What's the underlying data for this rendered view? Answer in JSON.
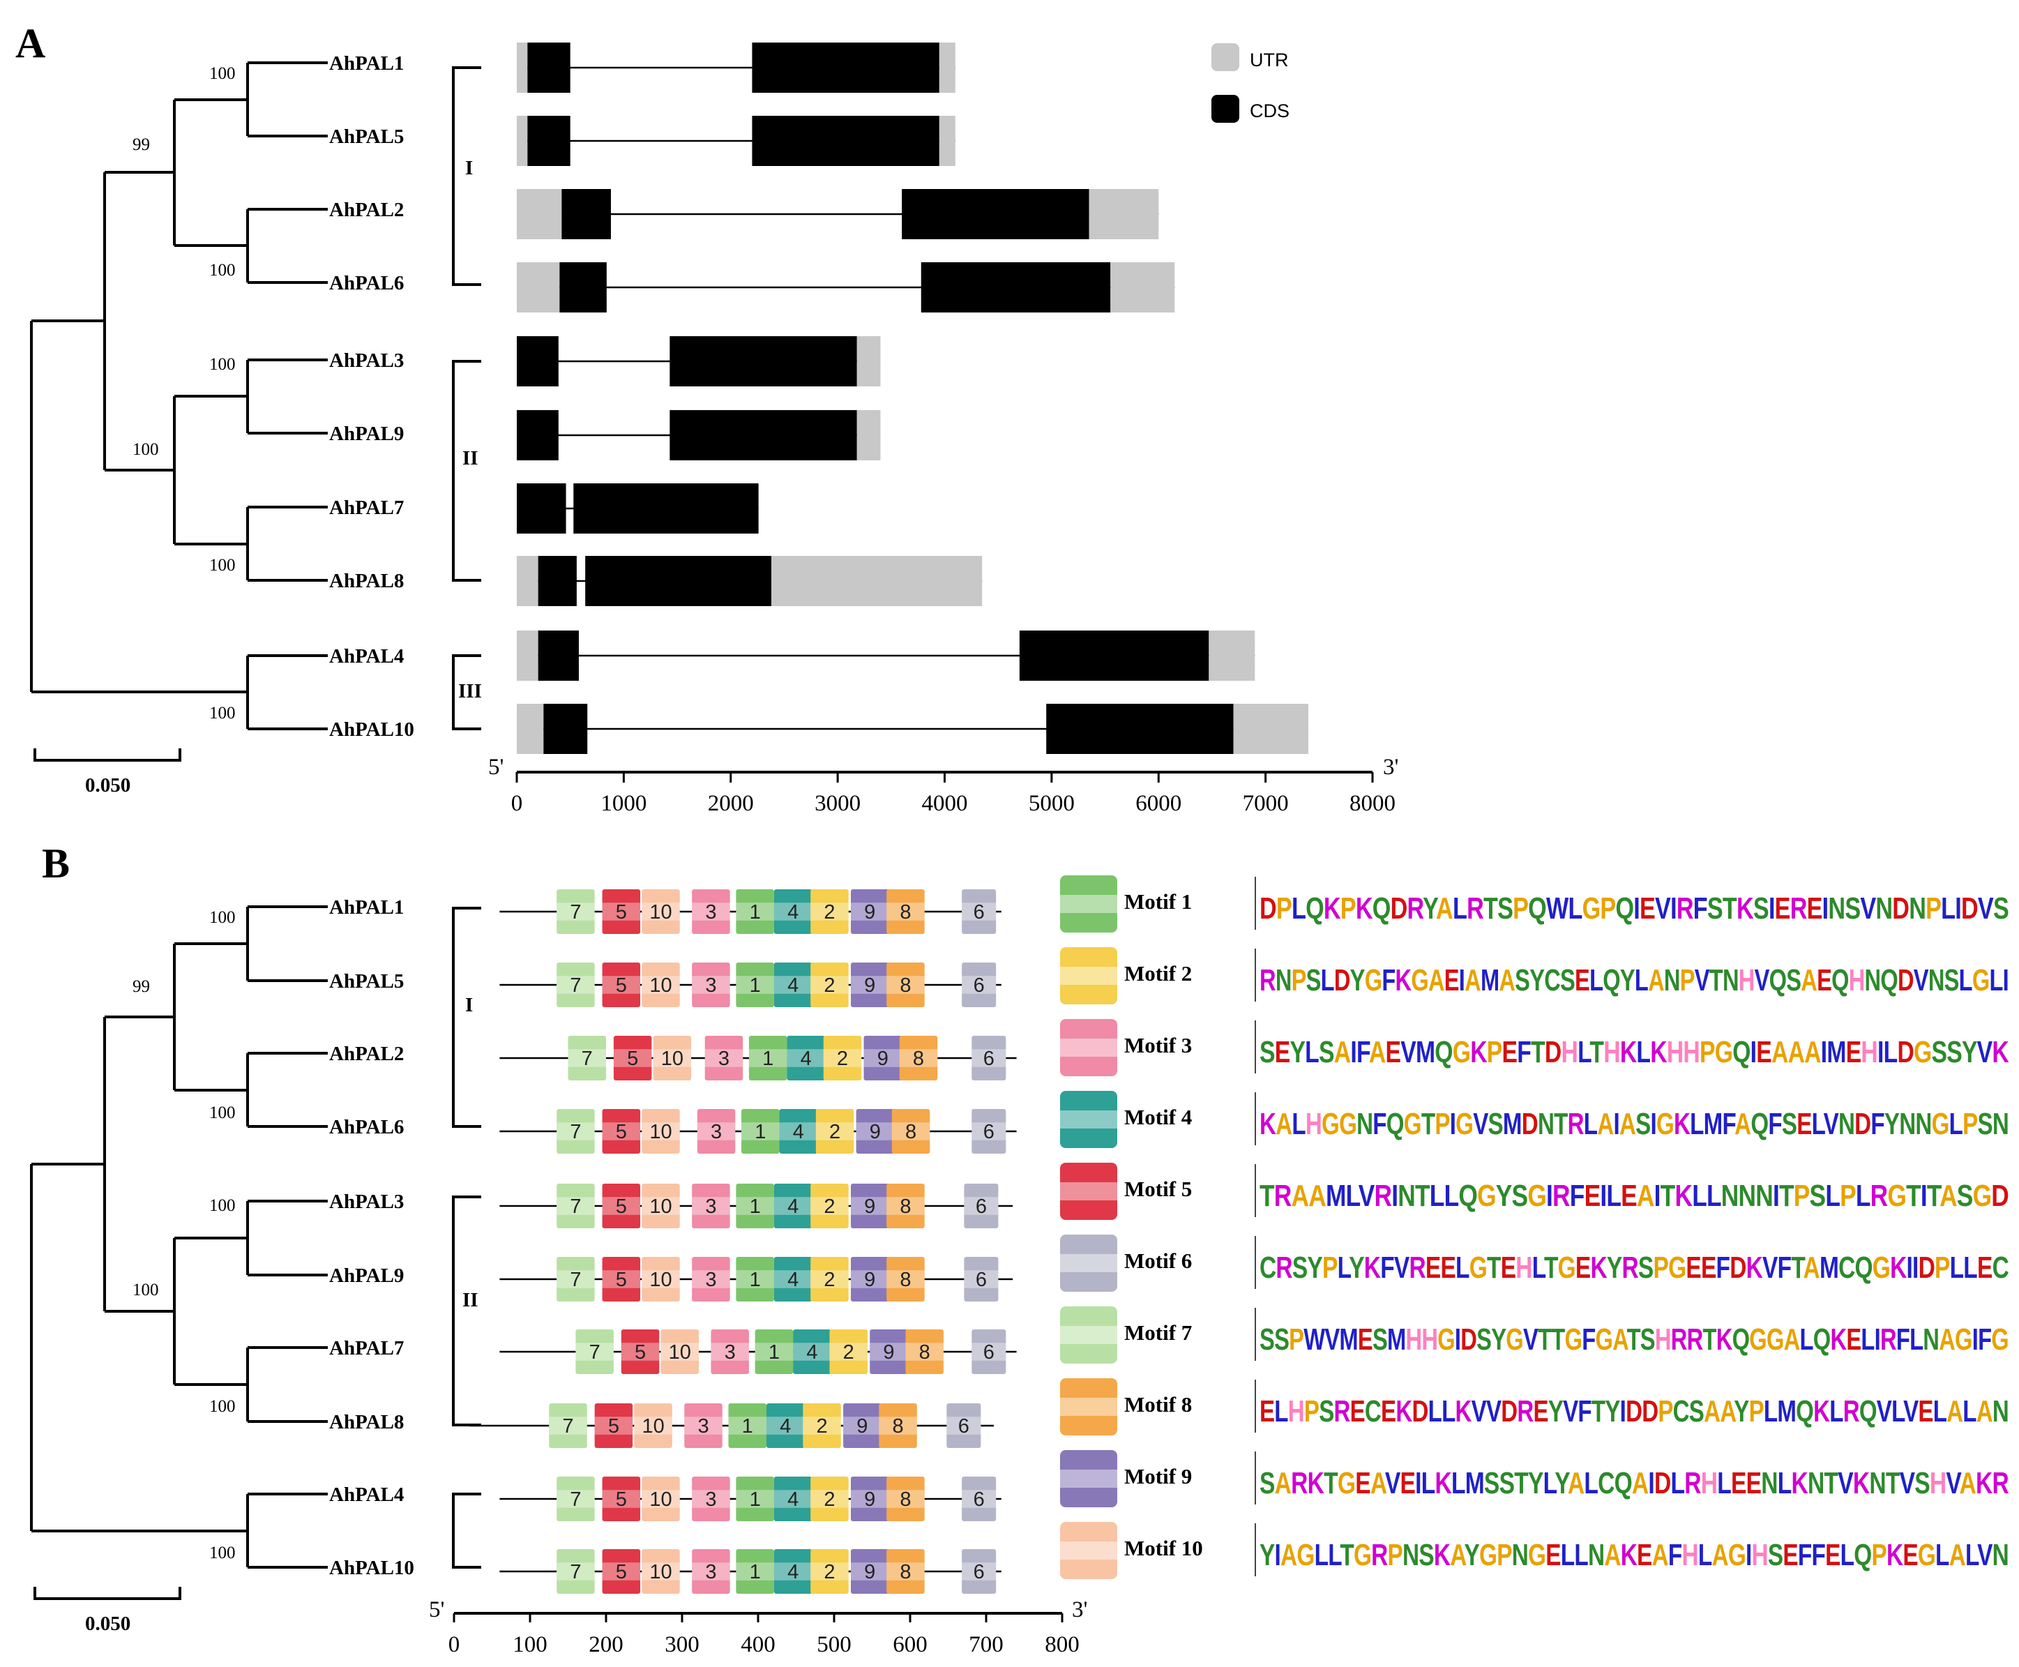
{
  "panels": {
    "a": "A",
    "b": "B"
  },
  "genes": [
    "AhPAL1",
    "AhPAL5",
    "AhPAL2",
    "AhPAL6",
    "AhPAL3",
    "AhPAL9",
    "AhPAL7",
    "AhPAL8",
    "AhPAL4",
    "AhPAL10"
  ],
  "bootstrap": {
    "pal1_pal5": "100",
    "ab_group": "99",
    "pal2_pal6": "100",
    "pal3_pal9": "100",
    "group2": "100",
    "pal7_pal8": "100",
    "pal4_pal10": "100"
  },
  "clades": [
    "I",
    "II",
    "III"
  ],
  "scale_bar": "0.050",
  "legend": {
    "utr": "UTR",
    "cds": "CDS",
    "utr_color": "#c8c8c8",
    "cds_color": "#000000"
  },
  "axis_a": {
    "five": "5'",
    "three": "3'",
    "ticks": [
      "0",
      "1000",
      "2000",
      "3000",
      "4000",
      "5000",
      "6000",
      "7000",
      "8000"
    ],
    "max": 8000
  },
  "axis_b": {
    "five": "5'",
    "three": "3'",
    "ticks": [
      "0",
      "100",
      "200",
      "300",
      "400",
      "500",
      "600",
      "700",
      "800"
    ],
    "max": 800
  },
  "gene_structures": [
    {
      "gene": "AhPAL1",
      "len": 4100,
      "exons": [
        [
          0,
          100,
          "u"
        ],
        [
          100,
          500,
          "c"
        ],
        [
          2200,
          3950,
          "c"
        ],
        [
          3950,
          4100,
          "u"
        ]
      ]
    },
    {
      "gene": "AhPAL5",
      "len": 4100,
      "exons": [
        [
          0,
          100,
          "u"
        ],
        [
          100,
          500,
          "c"
        ],
        [
          2200,
          3950,
          "c"
        ],
        [
          3950,
          4100,
          "u"
        ]
      ]
    },
    {
      "gene": "AhPAL2",
      "len": 6000,
      "exons": [
        [
          0,
          420,
          "u"
        ],
        [
          420,
          880,
          "c"
        ],
        [
          3600,
          5350,
          "c"
        ],
        [
          5350,
          6000,
          "u"
        ]
      ]
    },
    {
      "gene": "AhPAL6",
      "len": 6150,
      "exons": [
        [
          0,
          400,
          "u"
        ],
        [
          400,
          840,
          "c"
        ],
        [
          3780,
          5550,
          "c"
        ],
        [
          5550,
          6150,
          "u"
        ]
      ]
    },
    {
      "gene": "AhPAL3",
      "len": 3400,
      "exons": [
        [
          0,
          390,
          "c"
        ],
        [
          1430,
          3180,
          "c"
        ],
        [
          3180,
          3400,
          "u"
        ]
      ]
    },
    {
      "gene": "AhPAL9",
      "len": 3400,
      "exons": [
        [
          0,
          390,
          "c"
        ],
        [
          1430,
          3180,
          "c"
        ],
        [
          3180,
          3400,
          "u"
        ]
      ]
    },
    {
      "gene": "AhPAL7",
      "len": 2260,
      "exons": [
        [
          0,
          460,
          "c"
        ],
        [
          530,
          2260,
          "c"
        ]
      ]
    },
    {
      "gene": "AhPAL8",
      "len": 4350,
      "exons": [
        [
          0,
          200,
          "u"
        ],
        [
          200,
          560,
          "c"
        ],
        [
          640,
          2380,
          "c"
        ],
        [
          2380,
          4350,
          "u"
        ]
      ]
    },
    {
      "gene": "AhPAL4",
      "len": 6900,
      "exons": [
        [
          0,
          200,
          "u"
        ],
        [
          200,
          580,
          "c"
        ],
        [
          4700,
          6470,
          "c"
        ],
        [
          6470,
          6900,
          "u"
        ]
      ]
    },
    {
      "gene": "AhPAL10",
      "len": 7400,
      "exons": [
        [
          0,
          250,
          "u"
        ],
        [
          250,
          660,
          "c"
        ],
        [
          4950,
          6700,
          "c"
        ],
        [
          6700,
          7400,
          "u"
        ]
      ]
    }
  ],
  "motif_rows": [
    {
      "gene": "AhPAL1",
      "start": 60,
      "end": 720,
      "pos": [
        135,
        195,
        247,
        313,
        371,
        421,
        469,
        522,
        569,
        668
      ]
    },
    {
      "gene": "AhPAL5",
      "start": 60,
      "end": 720,
      "pos": [
        135,
        195,
        247,
        313,
        371,
        421,
        469,
        522,
        569,
        668
      ]
    },
    {
      "gene": "AhPAL2",
      "start": 60,
      "end": 740,
      "pos": [
        150,
        210,
        262,
        330,
        388,
        438,
        486,
        539,
        586,
        681
      ]
    },
    {
      "gene": "AhPAL6",
      "start": 60,
      "end": 740,
      "pos": [
        135,
        195,
        247,
        320,
        378,
        428,
        476,
        529,
        576,
        681
      ]
    },
    {
      "gene": "AhPAL3",
      "start": 60,
      "end": 735,
      "pos": [
        135,
        195,
        247,
        313,
        371,
        421,
        469,
        522,
        569,
        671
      ]
    },
    {
      "gene": "AhPAL9",
      "start": 60,
      "end": 735,
      "pos": [
        135,
        195,
        247,
        313,
        371,
        421,
        469,
        522,
        569,
        671
      ]
    },
    {
      "gene": "AhPAL7",
      "start": 60,
      "end": 740,
      "pos": [
        160,
        220,
        272,
        338,
        396,
        446,
        494,
        547,
        594,
        681
      ]
    },
    {
      "gene": "AhPAL8",
      "start": 20,
      "end": 710,
      "pos": [
        125,
        185,
        237,
        303,
        361,
        411,
        459,
        512,
        559,
        648
      ]
    },
    {
      "gene": "AhPAL4",
      "start": 60,
      "end": 720,
      "pos": [
        135,
        195,
        247,
        313,
        371,
        421,
        469,
        522,
        569,
        668
      ]
    },
    {
      "gene": "AhPAL10",
      "start": 60,
      "end": 720,
      "pos": [
        135,
        195,
        247,
        313,
        371,
        421,
        469,
        522,
        569,
        668
      ]
    }
  ],
  "motif_order": [
    "7",
    "5",
    "10",
    "3",
    "1",
    "4",
    "2",
    "9",
    "8",
    "6"
  ],
  "motif_widths": {
    "1": 50,
    "2": 50,
    "3": 50,
    "4": 50,
    "5": 50,
    "6": 45,
    "7": 50,
    "8": 50,
    "9": 50,
    "10": 50
  },
  "motif_colors": {
    "1": "#7cc46a",
    "2": "#f5cf4d",
    "3": "#f08aa6",
    "4": "#2ea096",
    "5": "#e03848",
    "6": "#b4b4c8",
    "7": "#b8e0a4",
    "8": "#f5a84a",
    "9": "#8878b8",
    "10": "#f8c4a4"
  },
  "motif_legend": [
    "Motif 1",
    "Motif 2",
    "Motif 3",
    "Motif 4",
    "Motif 5",
    "Motif 6",
    "Motif 7",
    "Motif 8",
    "Motif 9",
    "Motif 10"
  ],
  "logos": [
    "DPLQKPKQDRYALRTSPQWLGPQIEVIRFSTKSIEREINSVNDNPLIDVS",
    "RNPSLDYGFKGAEIAMASYCSELQYLANPVTNHVQSAEQHNQDVNSLGLI",
    "SEYLSAIFAEVMQGKPEFTDHLTHKLKHHPGQIEAAAIMEHILDGSSYVK",
    "KALHGGNFQGTPIGVSMDNTRLAIASIGKLMFAQFSELVNDFYNNGLPSN",
    "TRAAMLVRINTLLQGYSGIRFEILEAITKLLNNNITPSLPLRGTITASGD",
    "CRSYPLYKFVREELGTEHLTGEKYRSPGEEFDKVFTAMCQGKIIDPLLEC",
    "SSPWVMESMHHGIDSYGVTTGFGATSHRRTKQGGALQKELIRFLNAGIFG",
    "ELHPSRECEKDLLKVVDREYVFTYIDDPCSAAYPLMQKLRQVLVELALAN",
    "SARKTGEAVEILKLMSSTYLYALCQAIDLRHLEENLKNTVKNTVSHVAKR",
    "YIAGLLTGRPNSKAYGPNGELLNAKEAFHLAGIHSEFFELQPKEGLALVN"
  ],
  "aa_colors": {
    "A": "#e8a200",
    "C": "#2c8a2c",
    "D": "#d41010",
    "E": "#d41010",
    "F": "#2020c8",
    "G": "#e8a200",
    "H": "#ff80c0",
    "I": "#2020c8",
    "K": "#d000d0",
    "L": "#2020c8",
    "M": "#2020c8",
    "N": "#2c8a2c",
    "P": "#e8a200",
    "Q": "#2c8a2c",
    "R": "#d000d0",
    "S": "#2c8a2c",
    "T": "#2c8a2c",
    "V": "#2020c8",
    "W": "#2020c8",
    "Y": "#2c8a2c"
  }
}
